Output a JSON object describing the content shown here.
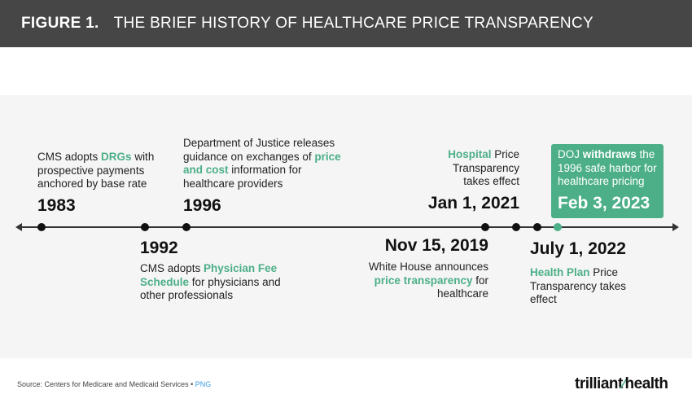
{
  "header": {
    "figure_label": "FIGURE 1.",
    "title": "THE BRIEF HISTORY OF HEALTHCARE PRICE TRANSPARENCY"
  },
  "events": [
    {
      "date": "1983",
      "pre": "CMS adopts ",
      "hl": "DRGs",
      "post": " with prospective payments anchored by base rate"
    },
    {
      "date": "1992",
      "pre": "CMS adopts ",
      "hl": "Physician Fee Schedule",
      "post": " for physicians and other professionals"
    },
    {
      "date": "1996",
      "pre": "Department of Justice releases guidance on exchanges of ",
      "hl": "price and cost",
      "post": " information for healthcare providers"
    },
    {
      "date": "Nov 15, 2019",
      "pre": "White House announces ",
      "hl": "price transparency",
      "post": " for healthcare"
    },
    {
      "date": "Jan 1, 2021",
      "pre": "",
      "hl": "Hospital",
      "post": " Price Transparency takes effect"
    },
    {
      "date": "July 1, 2022",
      "pre": "",
      "hl": "Health Plan",
      "post": " Price Transparency takes effect"
    },
    {
      "date": "Feb 3, 2023",
      "pre": "DOJ ",
      "hl": "withdraws",
      "post": " the 1996 safe harbor for healthcare pricing"
    }
  ],
  "colors": {
    "accent": "#4caf88",
    "header_bg": "#464646"
  },
  "footer": {
    "source": "Source: Centers for Medicare and Medicaid Services •",
    "png": "PNG",
    "logo_a": "trilliant",
    "logo_b": "health"
  }
}
